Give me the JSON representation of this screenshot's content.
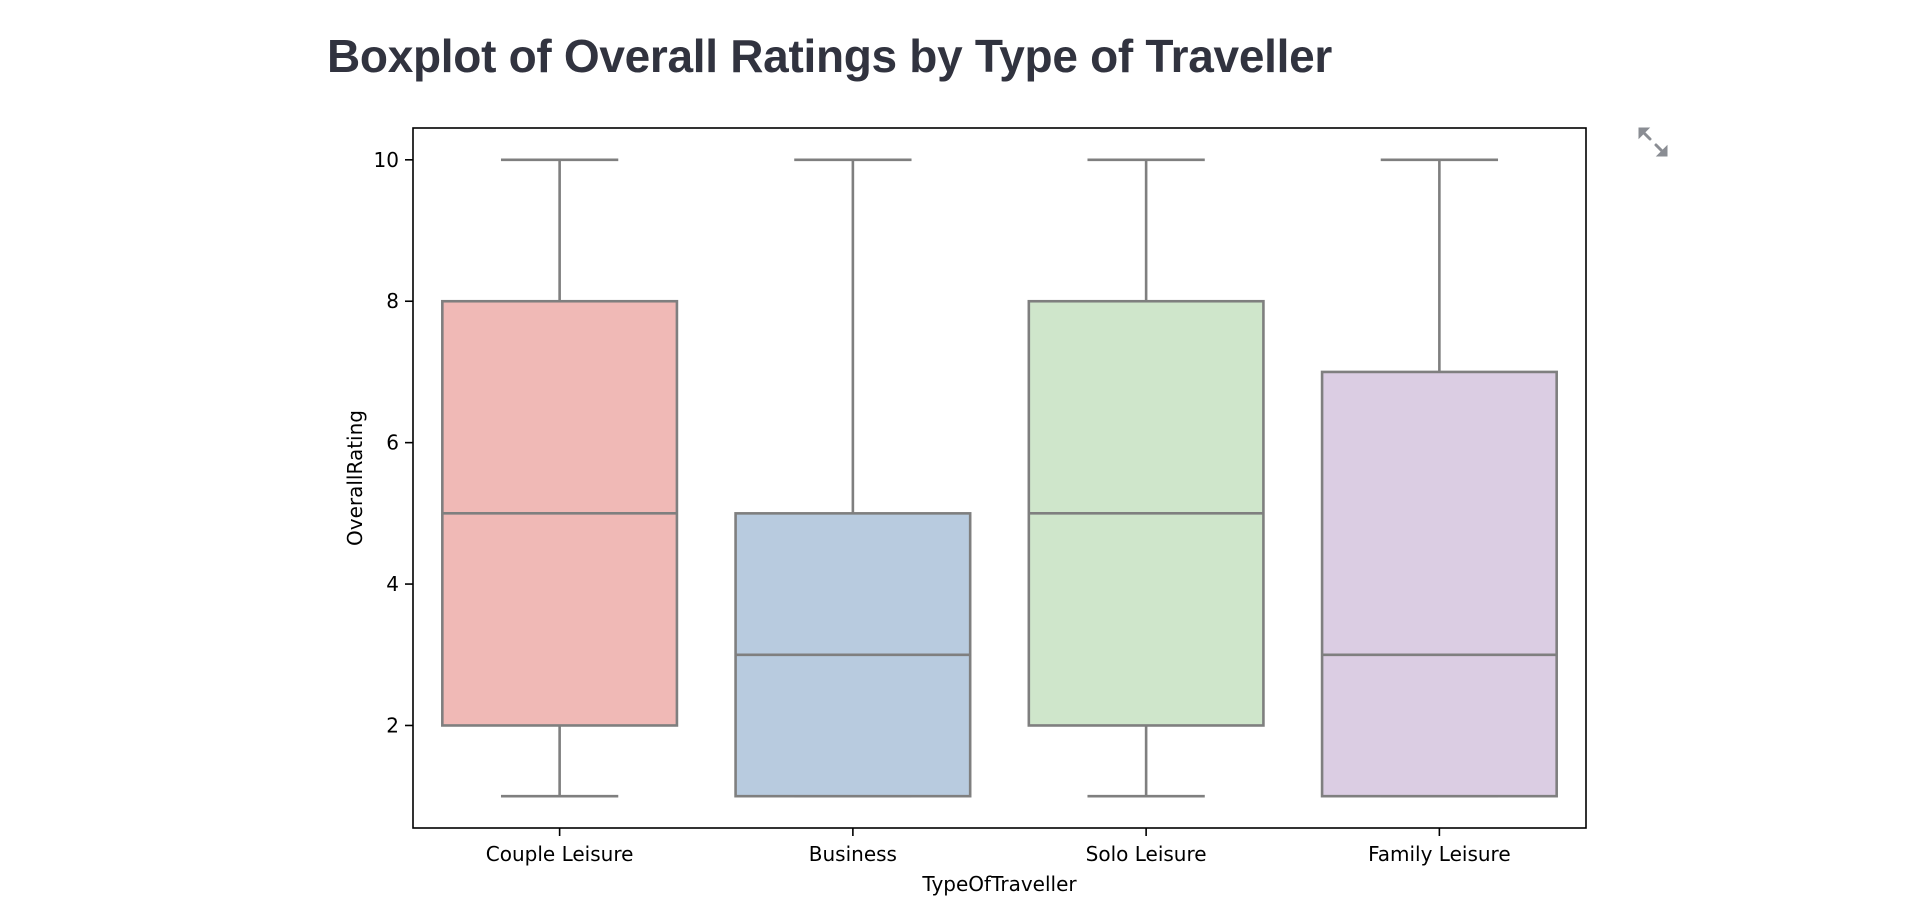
{
  "page": {
    "title": "Boxplot of Overall Ratings by Type of Traveller"
  },
  "toolbar": {
    "expand_icon": "expand-icon"
  },
  "chart_data": {
    "type": "box",
    "title": "",
    "xlabel": "TypeOfTraveller",
    "ylabel": "OverallRating",
    "ylim": [
      0.55,
      10.45
    ],
    "yticks": [
      2,
      4,
      6,
      8,
      10
    ],
    "grid": false,
    "categories": [
      "Couple Leisure",
      "Business",
      "Solo Leisure",
      "Family Leisure"
    ],
    "boxes": [
      {
        "category": "Couple Leisure",
        "whisker_low": 1,
        "q1": 2,
        "median": 5,
        "q3": 8,
        "whisker_high": 10,
        "color": "#f0b9b6"
      },
      {
        "category": "Business",
        "whisker_low": 1,
        "q1": 1,
        "median": 3,
        "q3": 5,
        "whisker_high": 10,
        "color": "#b8cbdf"
      },
      {
        "category": "Solo Leisure",
        "whisker_low": 1,
        "q1": 2,
        "median": 5,
        "q3": 8,
        "whisker_high": 10,
        "color": "#cfe6cb"
      },
      {
        "category": "Family Leisure",
        "whisker_low": 1,
        "q1": 1,
        "median": 3,
        "q3": 7,
        "whisker_high": 10,
        "color": "#dbcde3"
      }
    ],
    "line_color": "#7f7f7f"
  }
}
